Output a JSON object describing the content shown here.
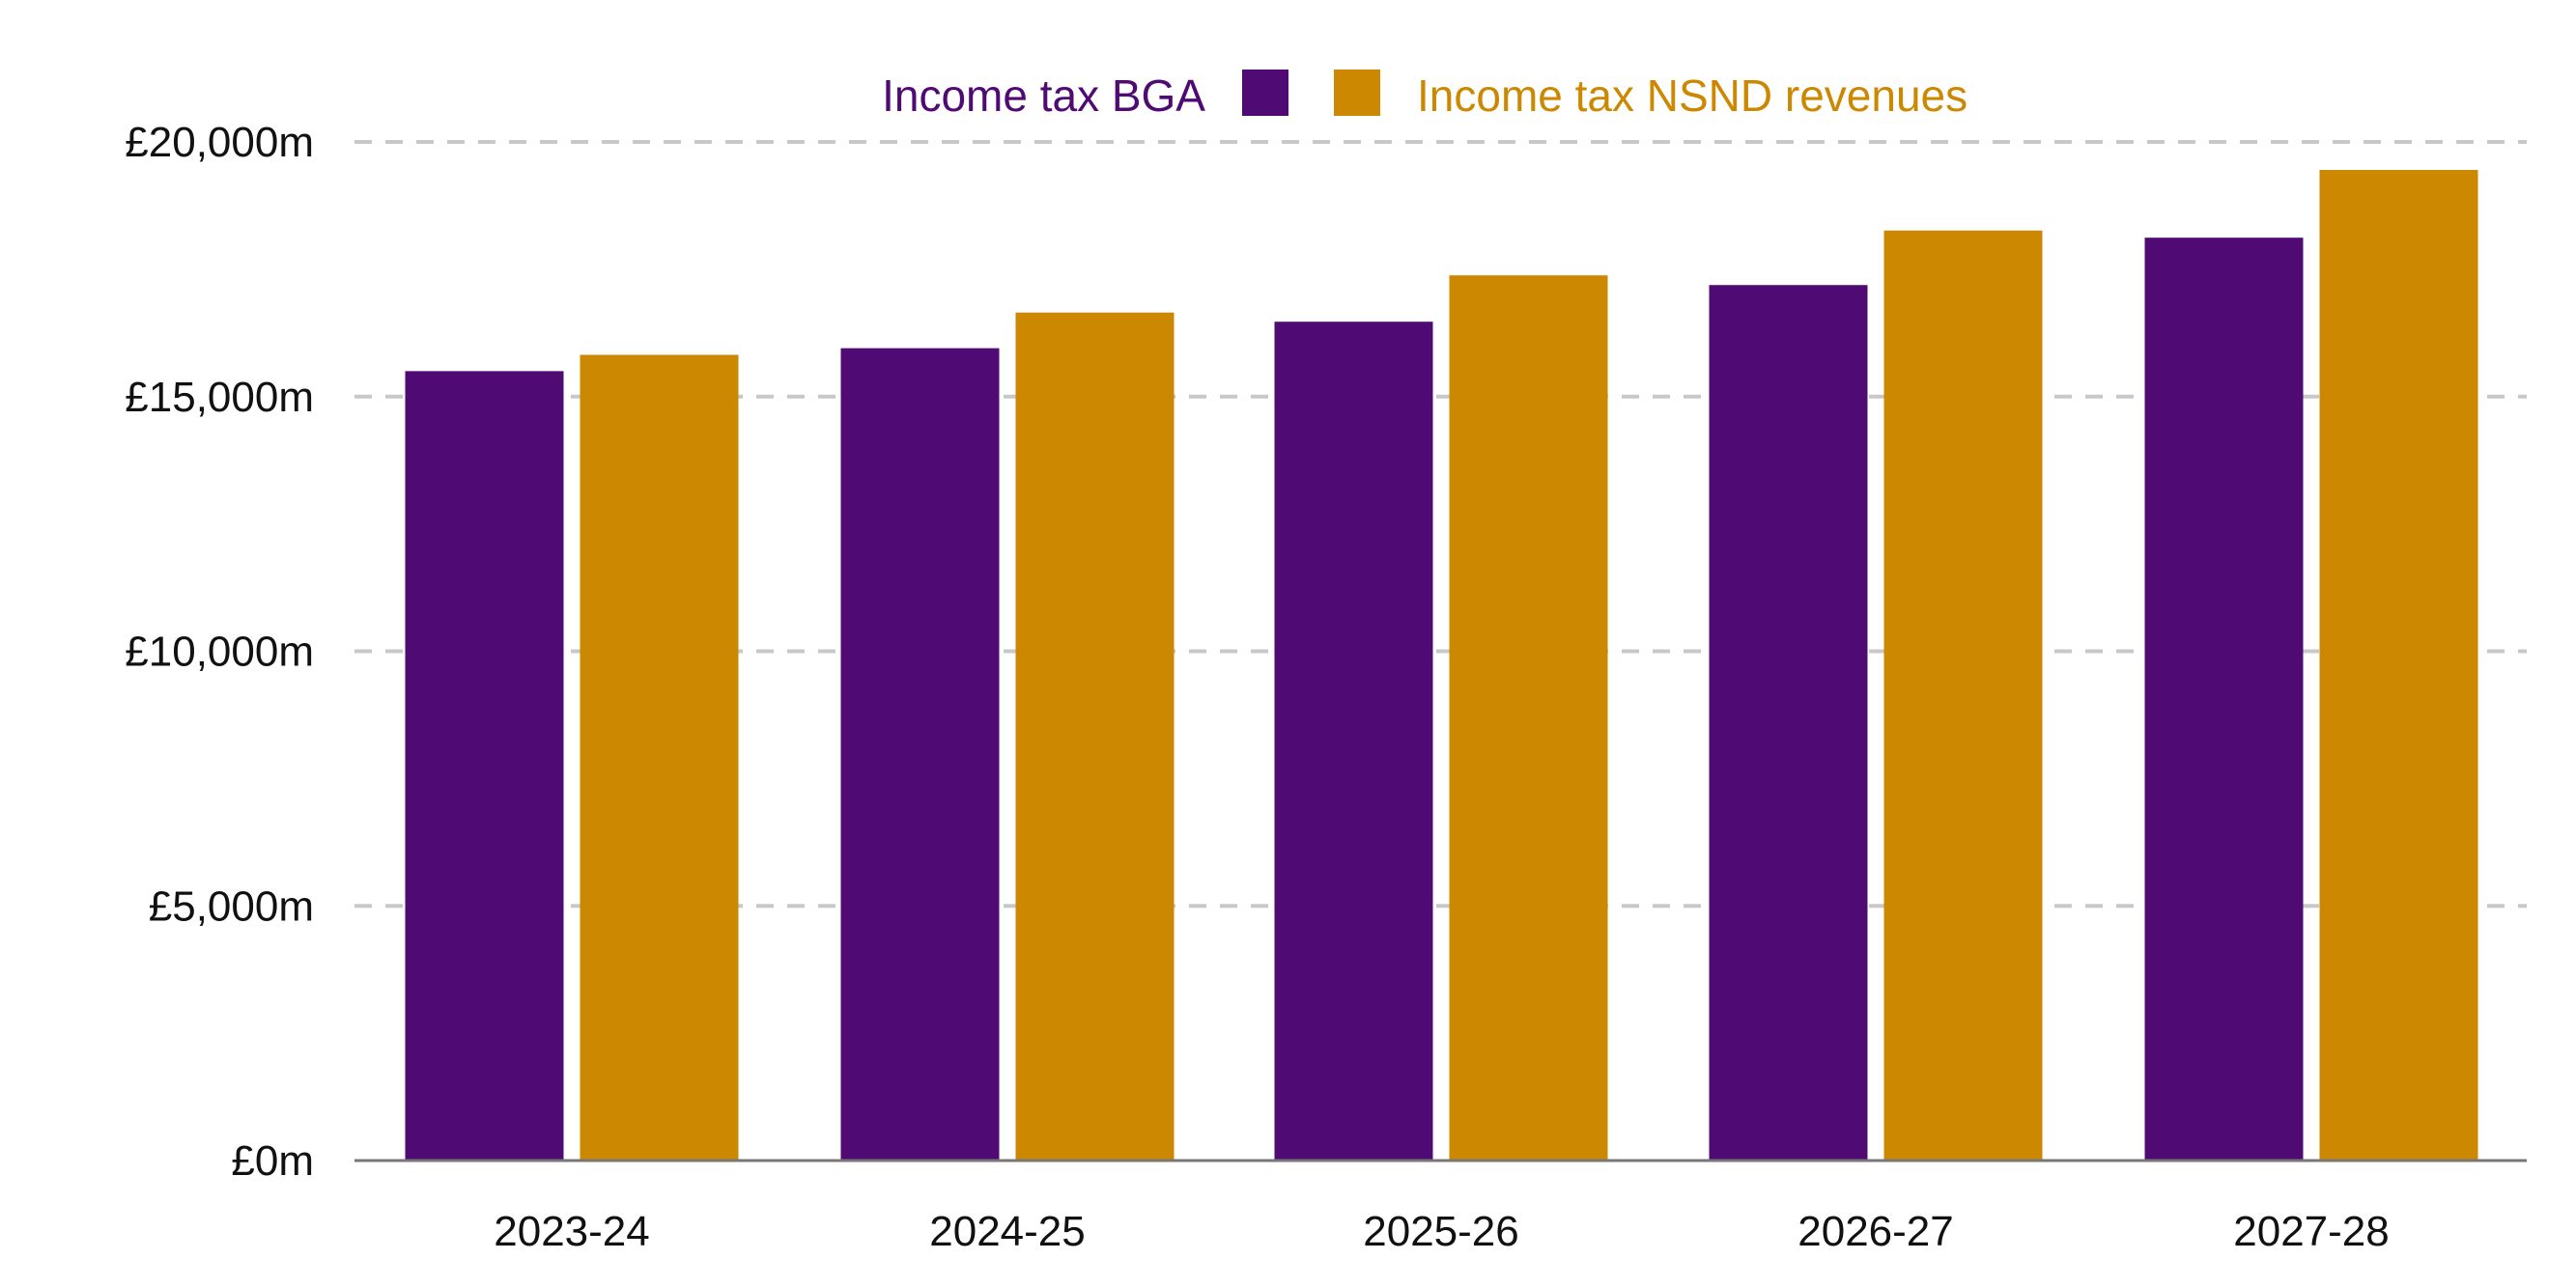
{
  "chart_data": {
    "type": "bar",
    "title": "",
    "xlabel": "",
    "ylabel": "",
    "categories": [
      "2023-24",
      "2024-25",
      "2025-26",
      "2026-27",
      "2027-28"
    ],
    "series": [
      {
        "name": "Income tax BGA",
        "color": "#500a73",
        "values": [
          15500,
          15950,
          16470,
          17190,
          18120
        ]
      },
      {
        "name": "Income tax NSND revenues",
        "color": "#cc8800",
        "values": [
          15820,
          16650,
          17380,
          18260,
          19450
        ]
      }
    ],
    "ylim": [
      0,
      20000
    ],
    "yticks": [
      0,
      5000,
      10000,
      15000,
      20000
    ],
    "ytick_labels": [
      "£0m",
      "£5,000m",
      "£10,000m",
      "£15,000m",
      "£20,000m"
    ],
    "grid": "horizontal dashed",
    "legend": "top-center"
  }
}
